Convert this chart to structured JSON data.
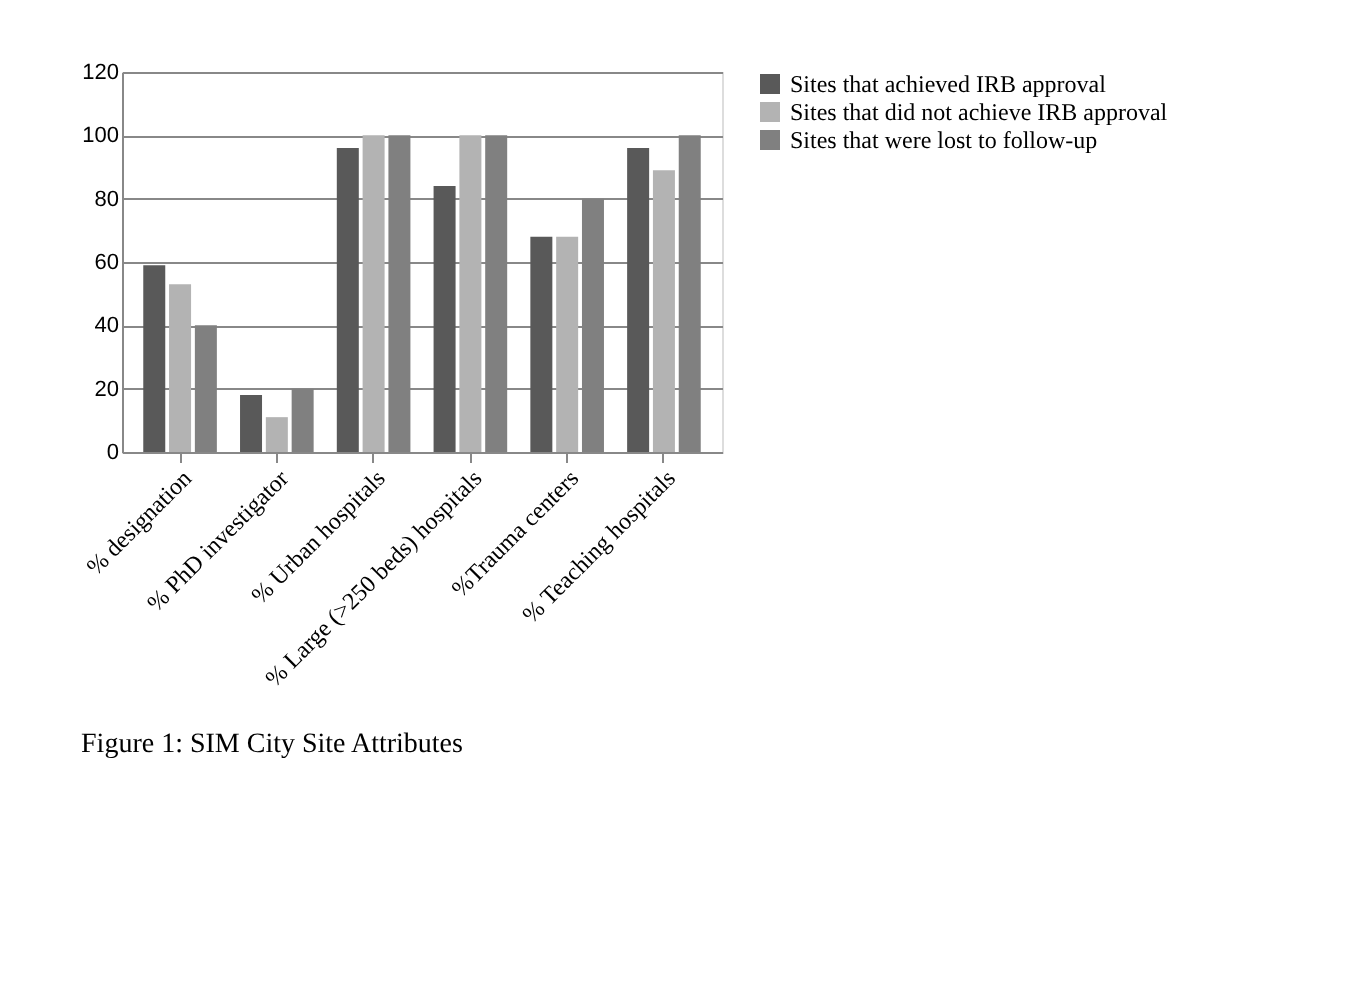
{
  "chart_data": {
    "type": "bar",
    "categories": [
      "% designation",
      "% PhD investigator",
      "% Urban hospitals",
      "% Large (>250 beds) hospitals",
      "%Trauma centers",
      "% Teaching hospitals"
    ],
    "series": [
      {
        "name": "Sites that achieved IRB approval",
        "color": "#595959",
        "values": [
          59,
          18,
          96,
          84,
          68,
          96
        ]
      },
      {
        "name": "Sites that did not achieve IRB approval",
        "color": "#b3b3b3",
        "values": [
          53,
          11,
          100,
          100,
          68,
          89
        ]
      },
      {
        "name": "Sites that were lost to follow-up",
        "color": "#808080",
        "values": [
          40,
          20,
          100,
          100,
          80,
          100
        ]
      }
    ],
    "ylim": [
      0,
      120
    ],
    "yticks": [
      0,
      20,
      40,
      60,
      80,
      100,
      120
    ],
    "grid": "y",
    "legend": "right",
    "annotations": [
      "Figure 1: SIM City Site Attributes"
    ]
  }
}
